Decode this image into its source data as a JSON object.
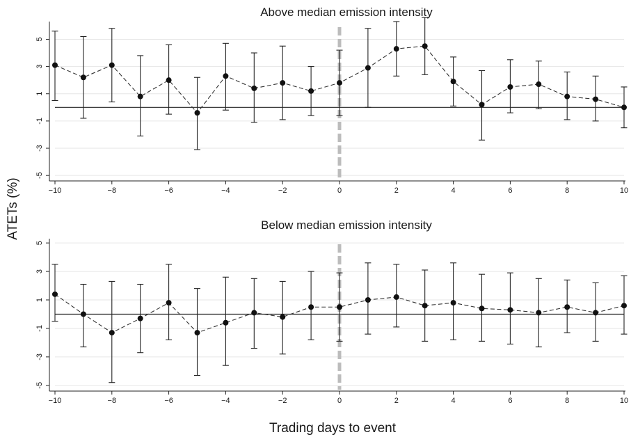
{
  "ylabel": "ATETs (%)",
  "xlabel": "Trading days to event",
  "chart_data": [
    {
      "type": "line",
      "title": "Above median emission intensity",
      "xlabel": "Trading days to event",
      "ylabel": "ATETs (%)",
      "x": [
        -10,
        -9,
        -8,
        -7,
        -6,
        -5,
        -4,
        -3,
        -2,
        -1,
        0,
        1,
        2,
        3,
        4,
        5,
        6,
        7,
        8,
        9,
        10
      ],
      "xticks": [
        -10,
        -8,
        -6,
        -4,
        -2,
        0,
        2,
        4,
        6,
        8,
        10
      ],
      "xtick_labels": [
        "−10",
        "−8",
        "−6",
        "−4",
        "−2",
        "0",
        "2",
        "4",
        "6",
        "8",
        "10"
      ],
      "yticks": [
        5,
        3,
        1,
        -1,
        -3,
        -5
      ],
      "ytick_labels": [
        "5",
        "3",
        "1",
        "-1",
        "-3",
        "-5"
      ],
      "ylim": [
        -5.4,
        6.3
      ],
      "xlim": [
        -10,
        10
      ],
      "grid": true,
      "event_line_x": 0,
      "zero_line_y": 0,
      "series": [
        {
          "values": [
            3.1,
            2.2,
            3.1,
            0.8,
            2.0,
            -0.4,
            2.3,
            1.4,
            1.8,
            1.2,
            1.8,
            2.9,
            4.3,
            4.5,
            1.9,
            0.2,
            1.5,
            1.7,
            0.8,
            0.6,
            0.0
          ],
          "ci_lower": [
            0.5,
            -0.8,
            0.4,
            -2.1,
            -0.5,
            -3.1,
            -0.2,
            -1.1,
            -0.9,
            -0.6,
            -0.6,
            0.0,
            2.3,
            2.4,
            0.1,
            -2.4,
            -0.4,
            -0.1,
            -0.9,
            -1.0,
            -1.5
          ],
          "ci_upper": [
            5.6,
            5.2,
            5.8,
            3.8,
            4.6,
            2.2,
            4.7,
            4.0,
            4.5,
            3.0,
            4.2,
            5.8,
            6.3,
            6.6,
            3.7,
            2.7,
            3.5,
            3.4,
            2.6,
            2.3,
            1.5
          ]
        }
      ]
    },
    {
      "type": "line",
      "title": "Below median emission intensity",
      "xlabel": "Trading days to event",
      "ylabel": "ATETs (%)",
      "x": [
        -10,
        -9,
        -8,
        -7,
        -6,
        -5,
        -4,
        -3,
        -2,
        -1,
        0,
        1,
        2,
        3,
        4,
        5,
        6,
        7,
        8,
        9,
        10
      ],
      "xticks": [
        -10,
        -8,
        -6,
        -4,
        -2,
        0,
        2,
        4,
        6,
        8,
        10
      ],
      "xtick_labels": [
        "−10",
        "−8",
        "−6",
        "−4",
        "−2",
        "0",
        "2",
        "4",
        "6",
        "8",
        "10"
      ],
      "yticks": [
        5,
        3,
        1,
        -1,
        -3,
        -5
      ],
      "ytick_labels": [
        "5",
        "3",
        "1",
        "-1",
        "-3",
        "-5"
      ],
      "ylim": [
        -5.4,
        5.3
      ],
      "xlim": [
        -10,
        10
      ],
      "grid": true,
      "event_line_x": 0,
      "zero_line_y": 0,
      "series": [
        {
          "values": [
            1.4,
            0.0,
            -1.3,
            -0.3,
            0.8,
            -1.3,
            -0.6,
            0.1,
            -0.2,
            0.5,
            0.5,
            1.0,
            1.2,
            0.6,
            0.8,
            0.4,
            0.3,
            0.1,
            0.5,
            0.1,
            0.6
          ],
          "ci_lower": [
            -0.5,
            -2.3,
            -4.8,
            -2.7,
            -1.8,
            -4.3,
            -3.6,
            -2.4,
            -2.8,
            -1.8,
            -1.9,
            -1.4,
            -0.9,
            -1.9,
            -1.8,
            -1.9,
            -2.1,
            -2.3,
            -1.3,
            -1.9,
            -1.4
          ],
          "ci_upper": [
            3.5,
            2.1,
            2.3,
            2.1,
            3.5,
            1.8,
            2.6,
            2.5,
            2.3,
            3.0,
            2.9,
            3.6,
            3.5,
            3.1,
            3.6,
            2.8,
            2.9,
            2.5,
            2.4,
            2.2,
            2.7
          ]
        }
      ]
    }
  ]
}
